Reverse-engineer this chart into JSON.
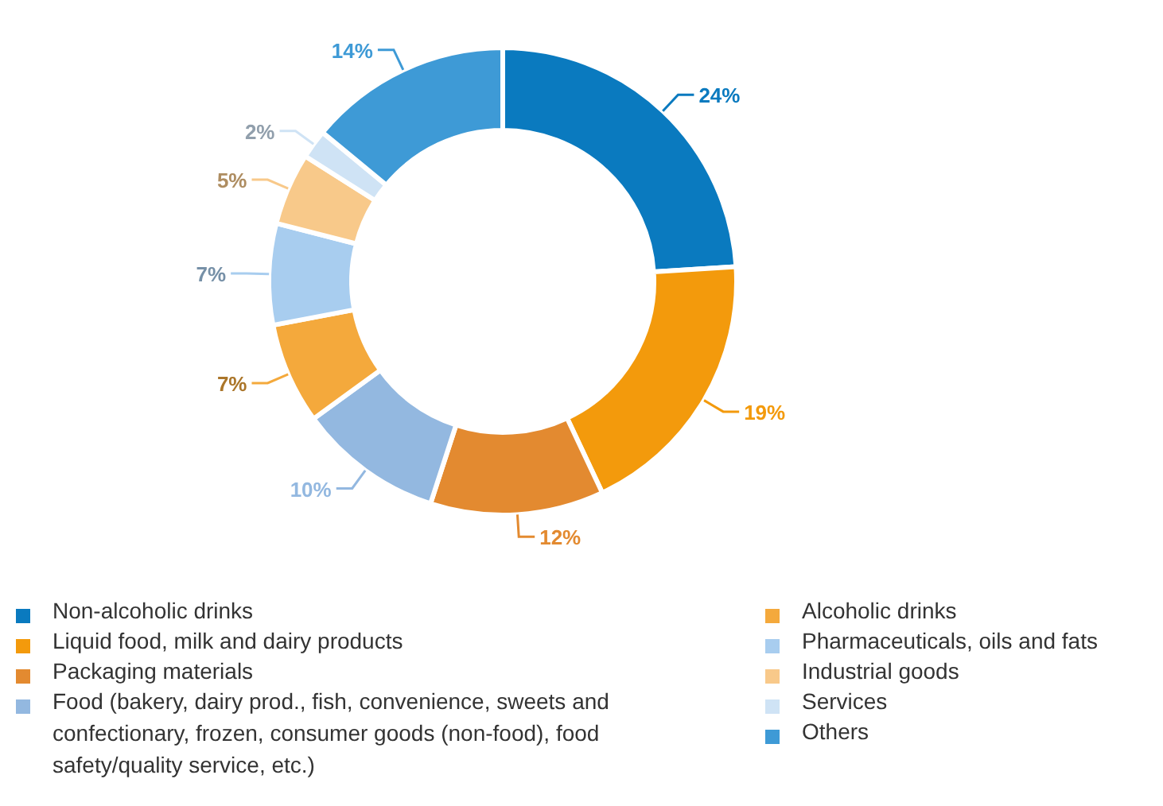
{
  "chart_data": {
    "type": "donut",
    "categories": [
      "Non-alcoholic drinks",
      "Liquid food, milk and dairy products",
      "Packaging materials",
      "Food (bakery, dairy prod., fish, convenience, sweets and confectionary, frozen, consumer goods (non-food), food safety/quality service, etc.)",
      "Alcoholic drinks",
      "Pharmaceuticals, oils and fats",
      "Industrial goods",
      "Services",
      "Others"
    ],
    "values": [
      24,
      19,
      12,
      10,
      7,
      7,
      5,
      2,
      14
    ],
    "value_labels": [
      "24%",
      "19%",
      "12%",
      "10%",
      "7%",
      "7%",
      "5%",
      "2%",
      "14%"
    ],
    "colors": [
      "#0a7abf",
      "#f39a0c",
      "#e38a30",
      "#93b8e0",
      "#f4a93c",
      "#a8cdef",
      "#f8c98a",
      "#cfe3f5",
      "#3e9ad6"
    ],
    "legend": "bottom"
  }
}
